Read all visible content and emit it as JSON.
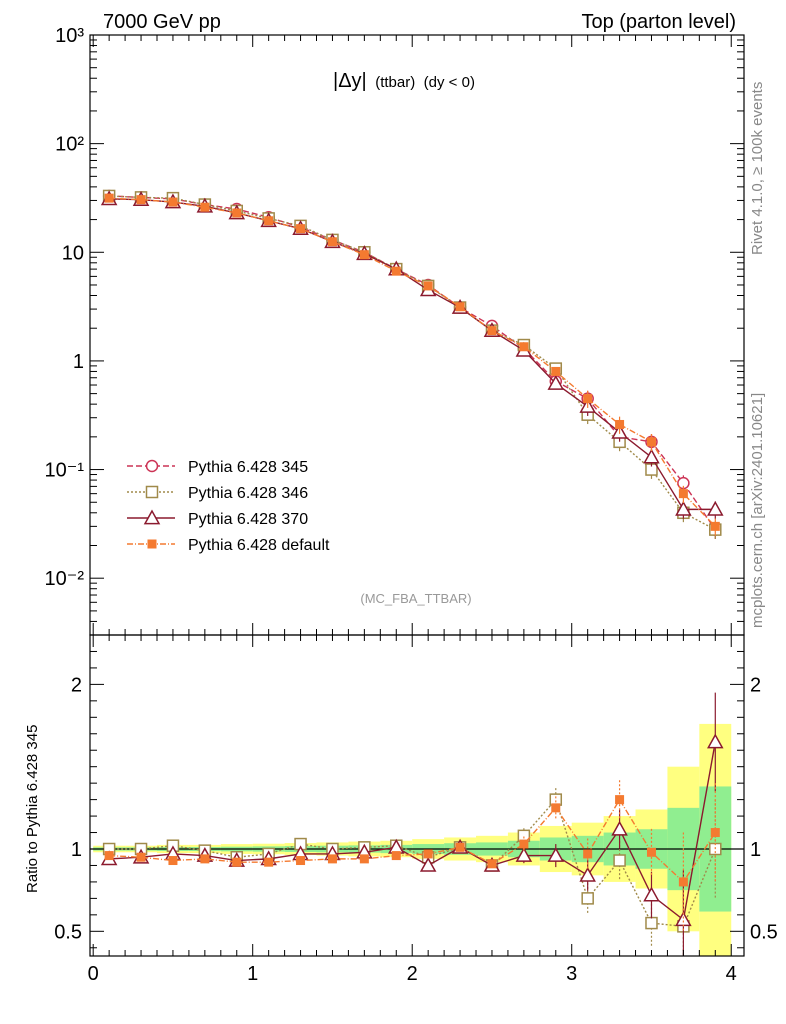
{
  "header": {
    "left": "7000 GeV pp",
    "right": "Top (parton level)"
  },
  "side": {
    "rivet": "Rivet 4.1.0, ≥ 100k events",
    "mcplots": "mcplots.cern.ch [arXiv:2401.10621]"
  },
  "plot_title": {
    "main": "|Δy|",
    "sub": "(ttbar)",
    "cond": "(dy < 0)"
  },
  "analysis_label": "(MC_FBA_TTBAR)",
  "ratio_ylabel": "Ratio to Pythia 6.428 345",
  "colors": {
    "p345": "#cc3355",
    "p346": "#a08a4a",
    "p370": "#8b1a2e",
    "pdef": "#f47a30",
    "band_green": "#90ee90",
    "band_yellow": "#ffff80"
  },
  "chart_data": [
    {
      "type": "line",
      "title": "|Δy| (ttbar) (dy < 0)",
      "xlabel": "",
      "ylabel": "",
      "yscale": "log",
      "xlim": [
        -0.02,
        4.08
      ],
      "ylim": [
        0.003,
        1000
      ],
      "xticks": [
        0,
        1,
        2,
        3,
        4
      ],
      "yticks": [
        {
          "v": 0.01,
          "label": "10⁻²"
        },
        {
          "v": 0.1,
          "label": "10⁻¹"
        },
        {
          "v": 1,
          "label": "1"
        },
        {
          "v": 10,
          "label": "10"
        },
        {
          "v": 100,
          "label": "10²"
        },
        {
          "v": 1000,
          "label": "10³"
        }
      ],
      "x": [
        0.1,
        0.3,
        0.5,
        0.7,
        0.9,
        1.1,
        1.3,
        1.5,
        1.7,
        1.9,
        2.1,
        2.3,
        2.5,
        2.7,
        2.9,
        3.1,
        3.3,
        3.5,
        3.7,
        3.9
      ],
      "legend_position": "bottom-left",
      "series": [
        {
          "key": "p345",
          "name": "Pythia 6.428 345",
          "marker": "circle",
          "dash": "6,3",
          "values": [
            33,
            32,
            31,
            27.5,
            25,
            21,
            17,
            13,
            10,
            7.0,
            5.0,
            3.1,
            2.1,
            1.3,
            0.65,
            0.45,
            0.2,
            0.18,
            0.075,
            0.028
          ]
        },
        {
          "key": "p346",
          "name": "Pythia 6.428 346",
          "marker": "square",
          "dash": "2,2",
          "values": [
            33,
            32,
            31.5,
            27.5,
            24,
            20.5,
            17.5,
            13,
            10,
            7.0,
            4.9,
            3.1,
            1.9,
            1.4,
            0.85,
            0.32,
            0.18,
            0.1,
            0.04,
            0.028
          ]
        },
        {
          "key": "p370",
          "name": "Pythia 6.428 370",
          "marker": "triangle",
          "dash": "",
          "values": [
            31,
            30.5,
            29,
            26.5,
            23,
            19.5,
            16.5,
            12.5,
            9.7,
            7.0,
            4.5,
            3.1,
            1.9,
            1.25,
            0.62,
            0.38,
            0.22,
            0.13,
            0.043,
            0.043
          ]
        },
        {
          "key": "pdef",
          "name": "Pythia 6.428 default",
          "marker": "fsquare",
          "dash": "6,2,1,2",
          "values": [
            31.5,
            30.5,
            29,
            26,
            23,
            19.5,
            16.5,
            12.5,
            9.5,
            6.7,
            4.9,
            3.15,
            1.9,
            1.35,
            0.8,
            0.45,
            0.26,
            0.18,
            0.06,
            0.03
          ]
        }
      ]
    },
    {
      "type": "line",
      "title": "",
      "xlabel": "",
      "ylabel": "Ratio to Pythia 6.428 345",
      "xlim": [
        -0.02,
        4.08
      ],
      "ylim": [
        0.35,
        2.3
      ],
      "xticks": [
        0,
        1,
        2,
        3,
        4
      ],
      "yticks": [
        0.5,
        1,
        2
      ],
      "x": [
        0.1,
        0.3,
        0.5,
        0.7,
        0.9,
        1.1,
        1.3,
        1.5,
        1.7,
        1.9,
        2.1,
        2.3,
        2.5,
        2.7,
        2.9,
        3.1,
        3.3,
        3.5,
        3.7,
        3.9
      ],
      "reference_line": 1,
      "band_green_halfwidth": [
        0.01,
        0.01,
        0.012,
        0.012,
        0.014,
        0.016,
        0.018,
        0.02,
        0.022,
        0.025,
        0.03,
        0.035,
        0.04,
        0.05,
        0.07,
        0.08,
        0.1,
        0.12,
        0.25,
        0.38
      ],
      "band_yellow_halfwidth": [
        0.02,
        0.02,
        0.025,
        0.025,
        0.03,
        0.032,
        0.036,
        0.04,
        0.045,
        0.05,
        0.06,
        0.07,
        0.08,
        0.1,
        0.14,
        0.16,
        0.2,
        0.24,
        0.5,
        0.76
      ],
      "series": [
        {
          "key": "p346",
          "name": "Pythia 6.428 346",
          "marker": "square",
          "dash": "2,2",
          "values": [
            1.0,
            1.0,
            1.02,
            0.99,
            0.95,
            0.97,
            1.03,
            1.0,
            1.01,
            1.02,
            0.95,
            1.01,
            0.9,
            1.08,
            1.3,
            0.7,
            0.93,
            0.55,
            0.53,
            1.0
          ]
        },
        {
          "key": "p370",
          "name": "Pythia 6.428 370",
          "marker": "triangle",
          "dash": "",
          "values": [
            0.94,
            0.95,
            0.97,
            0.96,
            0.93,
            0.94,
            0.97,
            0.97,
            0.98,
            1.01,
            0.9,
            1.01,
            0.9,
            0.96,
            0.96,
            0.84,
            1.12,
            0.72,
            0.57,
            1.65
          ]
        },
        {
          "key": "pdef",
          "name": "Pythia 6.428 default",
          "marker": "fsquare",
          "dash": "6,2,1,2",
          "values": [
            0.96,
            0.95,
            0.93,
            0.94,
            0.92,
            0.92,
            0.93,
            0.94,
            0.94,
            0.96,
            0.97,
            1.01,
            0.91,
            1.03,
            1.25,
            0.97,
            1.3,
            0.98,
            0.8,
            1.1
          ]
        }
      ]
    }
  ]
}
